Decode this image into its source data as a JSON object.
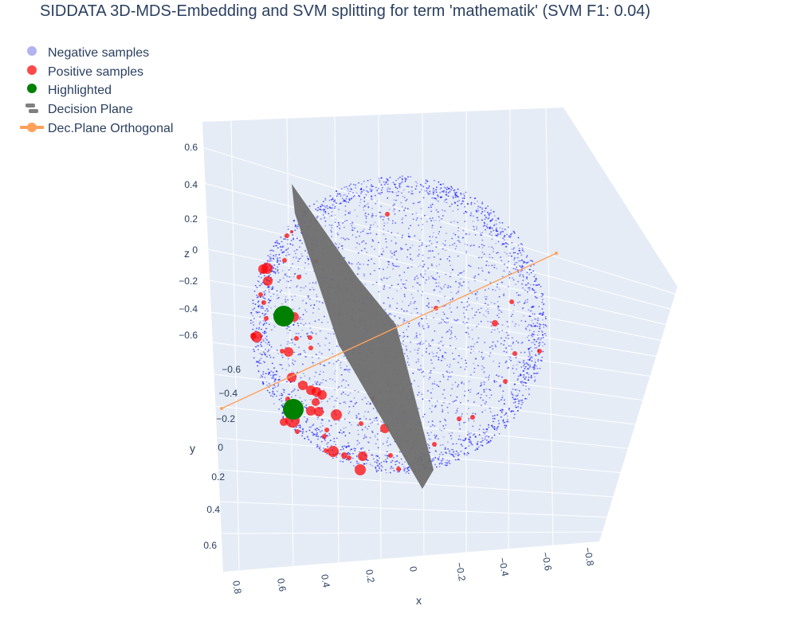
{
  "chart_data": {
    "type": "scatter",
    "title": "SIDDATA 3D-MDS-Embedding and SVM splitting for term 'mathematik' (SVM F1: 0.04)",
    "legend": {
      "placement": "top-left",
      "entries": [
        {
          "name": "Negative samples",
          "color": "#b3b3f2",
          "symbol": "circle"
        },
        {
          "name": "Positive samples",
          "color": "#ff4a4a",
          "symbol": "circle"
        },
        {
          "name": "Highlighted",
          "color": "#008000",
          "symbol": "circle"
        },
        {
          "name": "Decision Plane",
          "color": "#808080",
          "symbol": "surface"
        },
        {
          "name": "Dec.Plane Orthogonal",
          "color": "#ffa15a",
          "symbol": "line-marker"
        }
      ]
    },
    "axes": {
      "x": {
        "title": "x",
        "ticks": [
          "0.8",
          "0.6",
          "0.4",
          "0.2",
          "0",
          "−0.2",
          "−0.4",
          "−0.6",
          "−0.8"
        ]
      },
      "y": {
        "title": "y",
        "ticks": [
          "−0.6",
          "−0.4",
          "−0.2",
          "0",
          "0.2",
          "0.4",
          "0.6"
        ]
      },
      "z": {
        "title": "z",
        "ticks": [
          "0.6",
          "0.4",
          "0.2",
          "0",
          "−0.2",
          "−0.4",
          "−0.6"
        ]
      }
    },
    "series": [
      {
        "name": "Negative samples",
        "color": "#0000ff"
      },
      {
        "name": "Positive samples",
        "color": "#ff0000",
        "points": [
          [
            486,
            269,
            3
          ],
          [
            360,
            296,
            3
          ],
          [
            366,
            291,
            2
          ],
          [
            330,
            338,
            6
          ],
          [
            335,
            337,
            7
          ],
          [
            336,
            353,
            6
          ],
          [
            357,
            327,
            3
          ],
          [
            375,
            348,
            3
          ],
          [
            327,
            370,
            3
          ],
          [
            331,
            380,
            3
          ],
          [
            334,
            400,
            3
          ],
          [
            369,
            398,
            6
          ],
          [
            322,
            423,
            7
          ],
          [
            318,
            422,
            4
          ],
          [
            354,
            441,
            3
          ],
          [
            362,
            442,
            6
          ],
          [
            390,
            437,
            3
          ],
          [
            372,
            425,
            3
          ],
          [
            389,
            424,
            3
          ],
          [
            366,
            474,
            6
          ],
          [
            380,
            484,
            6
          ],
          [
            390,
            490,
            6
          ],
          [
            397,
            492,
            6
          ],
          [
            404,
            496,
            6
          ],
          [
            396,
            505,
            5
          ],
          [
            390,
            516,
            6
          ],
          [
            400,
            517,
            6
          ],
          [
            422,
            521,
            7
          ],
          [
            361,
            501,
            3
          ],
          [
            356,
            530,
            5
          ],
          [
            367,
            528,
            9
          ],
          [
            373,
            542,
            3
          ],
          [
            410,
            540,
            3
          ],
          [
            407,
            548,
            3
          ],
          [
            409,
            566,
            3
          ],
          [
            418,
            567,
            7
          ],
          [
            432,
            572,
            4
          ],
          [
            438,
            575,
            3
          ],
          [
            455,
            573,
            6
          ],
          [
            452,
            590,
            7
          ],
          [
            483,
            538,
            6
          ],
          [
            490,
            572,
            3
          ],
          [
            545,
            558,
            3
          ],
          [
            547,
            387,
            3
          ],
          [
            642,
            379,
            3
          ],
          [
            621,
            406,
            4
          ],
          [
            646,
            444,
            3
          ],
          [
            634,
            479,
            3
          ],
          [
            677,
            441,
            3
          ],
          [
            576,
            526,
            3
          ],
          [
            593,
            524,
            3
          ],
          [
            500,
            589,
            3
          ],
          [
            468,
            500,
            3
          ],
          [
            453,
            532,
            3
          ],
          [
            397,
            328,
            3
          ]
        ]
      },
      {
        "name": "Highlighted",
        "color": "#008000",
        "points": [
          [
            356,
            397,
            13
          ],
          [
            368,
            514,
            13
          ]
        ]
      },
      {
        "name": "Decision Plane",
        "color": "#808080",
        "polygon": [
          [
            366,
            231
          ],
          [
            448,
            348
          ],
          [
            497,
            408
          ],
          [
            544,
            590
          ],
          [
            530,
            614
          ],
          [
            425,
            433
          ],
          [
            370,
            268
          ]
        ]
      },
      {
        "name": "Dec.Plane Orthogonal",
        "color": "#ffa15a",
        "from": [
          278,
          513
        ],
        "to": [
          698,
          318
        ]
      }
    ]
  }
}
